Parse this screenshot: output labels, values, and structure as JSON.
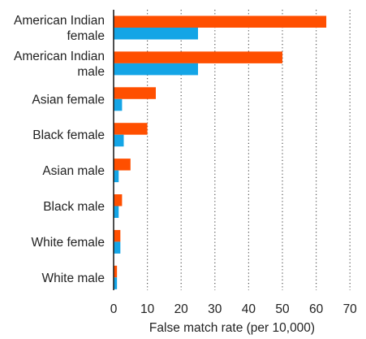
{
  "chart_data": {
    "type": "bar",
    "orientation": "horizontal",
    "categories": [
      [
        "American Indian",
        "female"
      ],
      [
        "American Indian",
        "male"
      ],
      [
        "Asian female"
      ],
      [
        "Black female"
      ],
      [
        "Asian male"
      ],
      [
        "Black male"
      ],
      [
        "White female"
      ],
      [
        "White male"
      ]
    ],
    "series": [
      {
        "color": "#ff4f00",
        "values": [
          63,
          50,
          12.5,
          10,
          5,
          2.5,
          2,
          1
        ]
      },
      {
        "color": "#14a5e6",
        "values": [
          25,
          25,
          2.5,
          3,
          1.5,
          1.5,
          2,
          1
        ]
      }
    ],
    "xlabel": "False match rate (per 10,000)",
    "xlim": [
      0,
      70
    ],
    "xticks": [
      "0",
      "10",
      "20",
      "30",
      "40",
      "50",
      "60",
      "70"
    ],
    "grid": "vertical dotted",
    "legend": "none"
  }
}
